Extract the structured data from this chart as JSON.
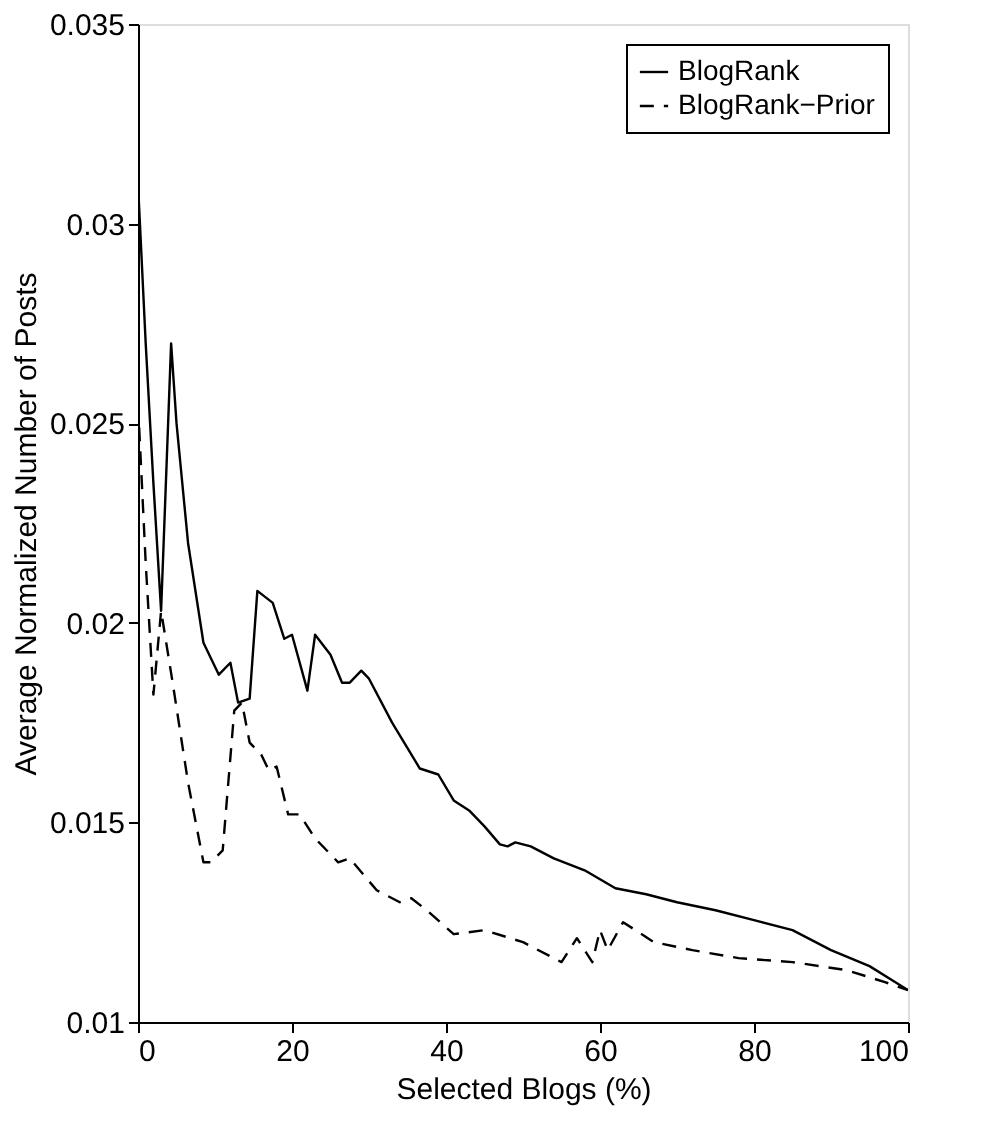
{
  "chart_data": {
    "type": "line",
    "xlabel": "Selected Blogs (%)",
    "ylabel": "Average Normalized Number of Posts",
    "xlim": [
      0,
      100
    ],
    "xticks": [
      0,
      20,
      40,
      60,
      80,
      100
    ],
    "ylim": [
      0.01,
      0.035
    ],
    "yticks": [
      0.01,
      0.015,
      0.02,
      0.025,
      0.03,
      0.035
    ],
    "grid": false,
    "legend": "top right",
    "marker": "none",
    "series": [
      {
        "name": "BlogRank",
        "color": "#000000",
        "line_style": "solid",
        "x": [
          0,
          1,
          2,
          3,
          4.3,
          5,
          6.5,
          8.5,
          10.5,
          12,
          13,
          14.5,
          15.5,
          17.5,
          19,
          20,
          22,
          23,
          25,
          26.5,
          27.5,
          29,
          30,
          33,
          36.6,
          39,
          41,
          43,
          45,
          47,
          48,
          49,
          51,
          54,
          58,
          62,
          66,
          70,
          75,
          80,
          85,
          90,
          95,
          100
        ],
        "values": [
          0.031,
          0.027,
          0.0235,
          0.0203,
          0.027,
          0.025,
          0.022,
          0.0195,
          0.0187,
          0.019,
          0.018,
          0.0181,
          0.0208,
          0.0205,
          0.0196,
          0.0197,
          0.0183,
          0.0197,
          0.0192,
          0.0185,
          0.0185,
          0.0188,
          0.0186,
          0.0175,
          0.01635,
          0.0162,
          0.01555,
          0.0153,
          0.0149,
          0.01445,
          0.0144,
          0.0145,
          0.0144,
          0.0141,
          0.0138,
          0.01335,
          0.0132,
          0.013,
          0.0128,
          0.01255,
          0.0123,
          0.0118,
          0.0114,
          0.0108
        ]
      },
      {
        "name": "BlogRank−Prior",
        "color": "#000000",
        "line_style": "dashed",
        "x": [
          0,
          1,
          2,
          3,
          4.5,
          6.5,
          8.5,
          9.5,
          11,
          12.5,
          13.5,
          14.5,
          16,
          17,
          18,
          19.5,
          21,
          23,
          26,
          27.5,
          31,
          34,
          35.5,
          37.5,
          41,
          45,
          50,
          55,
          57,
          59,
          60,
          61,
          63,
          67,
          72,
          78,
          85,
          92,
          97,
          100
        ],
        "values": [
          0.0255,
          0.0215,
          0.0182,
          0.0203,
          0.0185,
          0.016,
          0.014,
          0.014,
          0.0143,
          0.0178,
          0.018,
          0.017,
          0.0167,
          0.0163,
          0.0164,
          0.0152,
          0.0152,
          0.0146,
          0.014,
          0.0141,
          0.0133,
          0.013,
          0.0131,
          0.0128,
          0.0122,
          0.0123,
          0.012,
          0.0115,
          0.0121,
          0.0115,
          0.0123,
          0.0118,
          0.0125,
          0.012,
          0.0118,
          0.0116,
          0.0115,
          0.0113,
          0.011,
          0.0108
        ]
      }
    ]
  }
}
